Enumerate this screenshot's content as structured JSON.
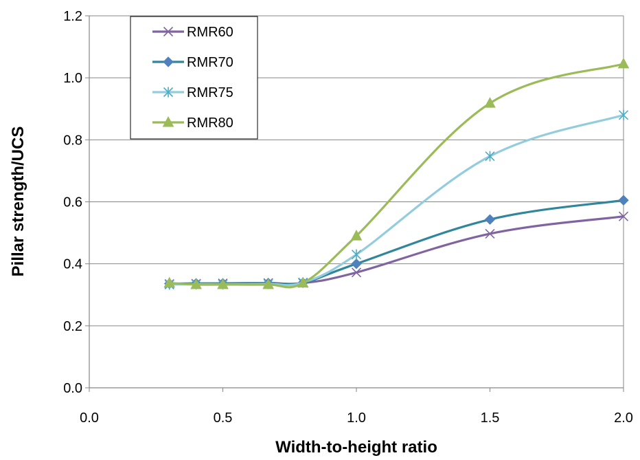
{
  "chart_data": {
    "type": "line",
    "title": "",
    "xlabel": "Width-to-height ratio",
    "ylabel": "Pillar strength/UCS",
    "xlim": [
      0.0,
      2.0
    ],
    "ylim": [
      0.0,
      1.2
    ],
    "xticks": [
      "0.0",
      "0.5",
      "1.0",
      "1.5",
      "2.0"
    ],
    "yticks": [
      "0.0",
      "0.2",
      "0.4",
      "0.6",
      "0.8",
      "1.0",
      "1.2"
    ],
    "grid": "horizontal",
    "legend_position": "top-left",
    "series": [
      {
        "name": "RMR60",
        "color": "#8064a2",
        "marker": "x-icon",
        "x": [
          0.3,
          0.4,
          0.5,
          0.67,
          0.8,
          1.0,
          1.5,
          2.0
        ],
        "y": [
          0.335,
          0.336,
          0.337,
          0.338,
          0.338,
          0.372,
          0.497,
          0.553
        ]
      },
      {
        "name": "RMR70",
        "color": "#31859c",
        "marker_color": "#4f81bd",
        "marker": "diamond-icon",
        "x": [
          0.3,
          0.4,
          0.5,
          0.67,
          0.8,
          1.0,
          1.5,
          2.0
        ],
        "y": [
          0.336,
          0.337,
          0.337,
          0.338,
          0.339,
          0.4,
          0.543,
          0.605
        ]
      },
      {
        "name": "RMR75",
        "color": "#93cddd",
        "marker_color": "#4bacc6",
        "marker": "asterisk-icon",
        "x": [
          0.3,
          0.4,
          0.5,
          0.67,
          0.8,
          1.0,
          1.5,
          2.0
        ],
        "y": [
          0.333,
          0.334,
          0.334,
          0.335,
          0.34,
          0.43,
          0.747,
          0.88
        ]
      },
      {
        "name": "RMR80",
        "color": "#9bbb59",
        "marker": "triangle-icon",
        "x": [
          0.3,
          0.4,
          0.5,
          0.67,
          0.8,
          1.0,
          1.5,
          2.0
        ],
        "y": [
          0.338,
          0.333,
          0.333,
          0.333,
          0.338,
          0.49,
          0.918,
          1.045
        ]
      }
    ]
  }
}
